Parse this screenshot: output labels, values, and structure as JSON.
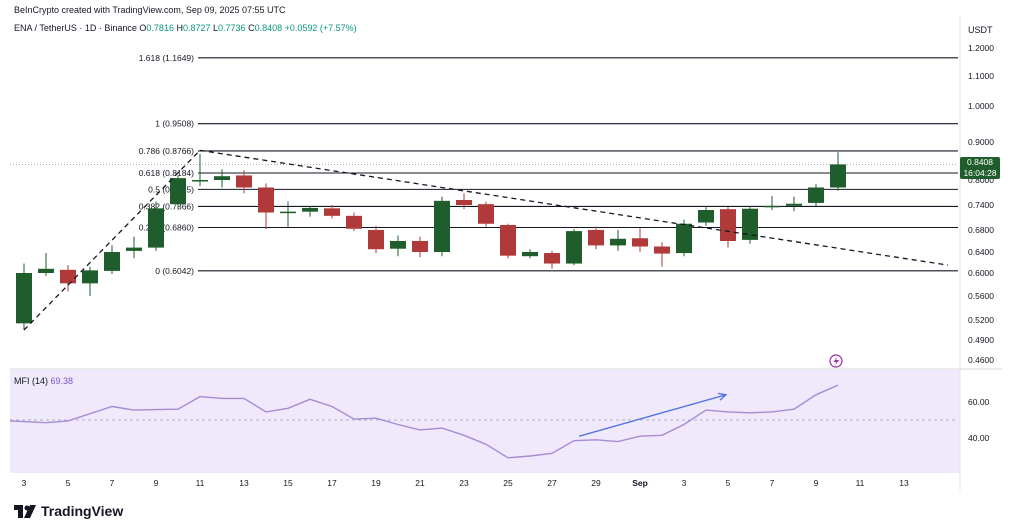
{
  "header": {
    "credit": "BeInCrypto created with TradingView.com, Sep 09, 2025 07:55 UTC",
    "symbol": "ENA / TetherUS · 1D · Binance",
    "ohlc": [
      {
        "label": "O",
        "value": "0.7816"
      },
      {
        "label": "H",
        "value": "0.8727"
      },
      {
        "label": "L",
        "value": "0.7736"
      },
      {
        "label": "C",
        "value": "0.8408"
      }
    ],
    "change": "+0.0592 (+7.57%)",
    "currency": "USDT"
  },
  "price_badge": {
    "price": "0.8408",
    "countdown": "16:04:28"
  },
  "mfi": {
    "label": "MFI (14)",
    "value": "69.38"
  },
  "logo": {
    "text": "TradingView"
  },
  "colors": {
    "up": "#1f5e2c",
    "down": "#b03a3a",
    "mfi_line": "#a78bd4",
    "mfi_fill": "#efe9fb",
    "arrow": "#4a6fe3"
  },
  "chart_data": [
    {
      "type": "candlestick",
      "y_axis_ticks": [
        "1.2000",
        "1.1000",
        "1.0000",
        "0.9000",
        "0.8000",
        "0.7400",
        "0.6800",
        "0.6400",
        "0.6000",
        "0.5600",
        "0.5200",
        "0.4900",
        "0.4600"
      ],
      "x_axis_ticks": [
        "3",
        "5",
        "7",
        "9",
        "11",
        "13",
        "15",
        "17",
        "19",
        "21",
        "23",
        "25",
        "27",
        "29",
        "Sep",
        "3",
        "5",
        "7",
        "9",
        "11",
        "13"
      ],
      "fib_levels": [
        {
          "label": "1.618 (1.1649)",
          "price": 1.1649
        },
        {
          "label": "1 (0.9508)",
          "price": 0.9508
        },
        {
          "label": "0.786 (0.8766)",
          "price": 0.8766
        },
        {
          "label": "0.618 (0.8184)",
          "price": 0.8184
        },
        {
          "label": "0.5 (0.7775)",
          "price": 0.7775
        },
        {
          "label": "0.382 (0.7366)",
          "price": 0.7366
        },
        {
          "label": "0.236 (0.6860)",
          "price": 0.686
        },
        {
          "label": "0 (0.6042)",
          "price": 0.6042
        }
      ],
      "candles": [
        {
          "date": "Aug 3",
          "o": 0.515,
          "h": 0.618,
          "l": 0.505,
          "c": 0.6
        },
        {
          "date": "Aug 4",
          "o": 0.6,
          "h": 0.638,
          "l": 0.595,
          "c": 0.608
        },
        {
          "date": "Aug 5",
          "o": 0.606,
          "h": 0.615,
          "l": 0.568,
          "c": 0.582
        },
        {
          "date": "Aug 6",
          "o": 0.582,
          "h": 0.612,
          "l": 0.56,
          "c": 0.605
        },
        {
          "date": "Aug 7",
          "o": 0.604,
          "h": 0.652,
          "l": 0.598,
          "c": 0.64
        },
        {
          "date": "Aug 8",
          "o": 0.642,
          "h": 0.668,
          "l": 0.628,
          "c": 0.648
        },
        {
          "date": "Aug 9",
          "o": 0.648,
          "h": 0.748,
          "l": 0.642,
          "c": 0.732
        },
        {
          "date": "Aug 10",
          "o": 0.742,
          "h": 0.812,
          "l": 0.73,
          "c": 0.805
        },
        {
          "date": "Aug 11",
          "o": 0.8,
          "h": 0.868,
          "l": 0.785,
          "c": 0.8
        },
        {
          "date": "Aug 12",
          "o": 0.8,
          "h": 0.828,
          "l": 0.782,
          "c": 0.81
        },
        {
          "date": "Aug 13",
          "o": 0.812,
          "h": 0.826,
          "l": 0.768,
          "c": 0.782
        },
        {
          "date": "Aug 14",
          "o": 0.782,
          "h": 0.792,
          "l": 0.682,
          "c": 0.722
        },
        {
          "date": "Aug 15",
          "o": 0.722,
          "h": 0.748,
          "l": 0.688,
          "c": 0.724
        },
        {
          "date": "Aug 16",
          "o": 0.724,
          "h": 0.738,
          "l": 0.712,
          "c": 0.733
        },
        {
          "date": "Aug 17",
          "o": 0.732,
          "h": 0.74,
          "l": 0.708,
          "c": 0.714
        },
        {
          "date": "Aug 18",
          "o": 0.714,
          "h": 0.722,
          "l": 0.678,
          "c": 0.683
        },
        {
          "date": "Aug 19",
          "o": 0.68,
          "h": 0.69,
          "l": 0.638,
          "c": 0.645
        },
        {
          "date": "Aug 20",
          "o": 0.646,
          "h": 0.67,
          "l": 0.632,
          "c": 0.66
        },
        {
          "date": "Aug 21",
          "o": 0.66,
          "h": 0.668,
          "l": 0.63,
          "c": 0.64
        },
        {
          "date": "Aug 22",
          "o": 0.64,
          "h": 0.76,
          "l": 0.632,
          "c": 0.75
        },
        {
          "date": "Aug 23",
          "o": 0.752,
          "h": 0.768,
          "l": 0.73,
          "c": 0.74
        },
        {
          "date": "Aug 24",
          "o": 0.742,
          "h": 0.748,
          "l": 0.688,
          "c": 0.695
        },
        {
          "date": "Aug 25",
          "o": 0.692,
          "h": 0.695,
          "l": 0.628,
          "c": 0.633
        },
        {
          "date": "Aug 26",
          "o": 0.632,
          "h": 0.645,
          "l": 0.628,
          "c": 0.64
        },
        {
          "date": "Aug 27",
          "o": 0.638,
          "h": 0.642,
          "l": 0.608,
          "c": 0.618
        },
        {
          "date": "Aug 28",
          "o": 0.618,
          "h": 0.682,
          "l": 0.615,
          "c": 0.678
        },
        {
          "date": "Aug 29",
          "o": 0.68,
          "h": 0.688,
          "l": 0.645,
          "c": 0.652
        },
        {
          "date": "Aug 30",
          "o": 0.652,
          "h": 0.68,
          "l": 0.642,
          "c": 0.664
        },
        {
          "date": "Aug 31",
          "o": 0.665,
          "h": 0.684,
          "l": 0.64,
          "c": 0.65
        },
        {
          "date": "Sep 1",
          "o": 0.65,
          "h": 0.658,
          "l": 0.612,
          "c": 0.637
        },
        {
          "date": "Sep 2",
          "o": 0.638,
          "h": 0.705,
          "l": 0.632,
          "c": 0.695
        },
        {
          "date": "Sep 3",
          "o": 0.698,
          "h": 0.735,
          "l": 0.69,
          "c": 0.728
        },
        {
          "date": "Sep 4",
          "o": 0.73,
          "h": 0.735,
          "l": 0.648,
          "c": 0.66
        },
        {
          "date": "Sep 5",
          "o": 0.662,
          "h": 0.738,
          "l": 0.655,
          "c": 0.731
        },
        {
          "date": "Sep 6",
          "o": 0.735,
          "h": 0.762,
          "l": 0.728,
          "c": 0.738
        },
        {
          "date": "Sep 7",
          "o": 0.738,
          "h": 0.76,
          "l": 0.725,
          "c": 0.743
        },
        {
          "date": "Sep 8",
          "o": 0.745,
          "h": 0.79,
          "l": 0.738,
          "c": 0.782
        },
        {
          "date": "Sep 9",
          "o": 0.782,
          "h": 0.873,
          "l": 0.774,
          "c": 0.841
        }
      ],
      "trendlines": [
        {
          "style": "dashed",
          "from": {
            "date": "Aug 3",
            "price": 0.505
          },
          "to": {
            "date": "Aug 11",
            "price": 0.878
          }
        },
        {
          "style": "dashed",
          "from": {
            "date": "Aug 11",
            "price": 0.878
          },
          "to": {
            "date": "Sep 14",
            "price": 0.615
          }
        }
      ]
    },
    {
      "type": "line",
      "name": "MFI (14)",
      "y_axis_ticks": [
        "60.00",
        "40.00"
      ],
      "reference_line": 50,
      "values": [
        49.5,
        48.5,
        49.5,
        53.5,
        57.5,
        55.5,
        55.8,
        56.0,
        63.0,
        62.0,
        62.0,
        54.5,
        56.5,
        61.5,
        57.5,
        50.5,
        51.0,
        47.5,
        44.5,
        45.5,
        41.5,
        36.5,
        29.0,
        30.0,
        31.5,
        38.5,
        39.0,
        38.0,
        41.0,
        41.5,
        47.5,
        55.5,
        54.5,
        54.0,
        54.5,
        56.0,
        64.0,
        69.4
      ],
      "annotation_arrow": {
        "from": {
          "date": "Aug 28",
          "mfi": 41.0
        },
        "to": {
          "date": "Sep 4",
          "mfi": 64.0
        }
      }
    }
  ]
}
